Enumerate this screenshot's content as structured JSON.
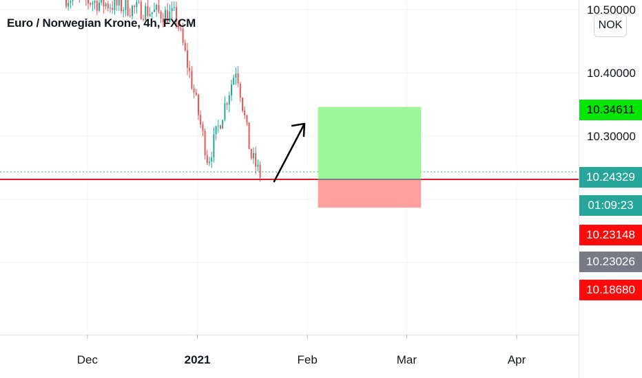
{
  "header": {
    "title": "Euro / Norwegian Krone, 4h, FXCM",
    "currency_button": "NOK"
  },
  "colors": {
    "up": "#26a69a",
    "down": "#ef5350",
    "target_zone": "#9cf59a",
    "stop_zone": "#ff9f9f",
    "entry_line": "#e0182a",
    "last_price": "#26a69a",
    "target_badge": "#00e600",
    "stop_badge": "#ff0a0a",
    "gray_badge": "#787b86",
    "grid": "#f0f3fa"
  },
  "chart_data": {
    "type": "candlestick",
    "symbol": "EURNOK",
    "timeframe": "4h",
    "source": "FXCM",
    "x_labels": [
      "Dec",
      "2021",
      "Feb",
      "Mar",
      "Apr"
    ],
    "y_ticks": [
      "10.50000",
      "10.40000",
      "10.30000"
    ],
    "ylim": [
      10.095,
      10.51
    ],
    "candles_summary": {
      "start_date": "2020-11-25",
      "end_date": "2021-01-19",
      "high": 10.51,
      "low": 10.235,
      "trend": "down",
      "note_points": [
        {
          "date": "2020-12-26",
          "price": 10.49
        },
        {
          "date": "2020-12-31",
          "price": 10.37
        },
        {
          "date": "2021-01-04",
          "price": 10.26
        },
        {
          "date": "2021-01-12",
          "price": 10.41
        },
        {
          "date": "2021-01-16",
          "price": 10.27
        },
        {
          "date": "2021-01-19",
          "price": 10.235
        }
      ]
    },
    "position": {
      "type": "long",
      "start_date": "2021-02-04",
      "end_date": "2021-03-05",
      "entry": 10.23148,
      "target": 10.34611,
      "stop": 10.1868
    },
    "entry_line_price": 10.23148,
    "last_price": 10.24329,
    "countdown": "01:09:23",
    "price_labels": [
      {
        "id": "target",
        "value": "10.34611"
      },
      {
        "id": "last",
        "value": "10.24329"
      },
      {
        "id": "countdown",
        "value": "01:09:23"
      },
      {
        "id": "entry",
        "value": "10.23148"
      },
      {
        "id": "gray",
        "value": "10.23026"
      },
      {
        "id": "stop",
        "value": "10.18680"
      }
    ]
  }
}
